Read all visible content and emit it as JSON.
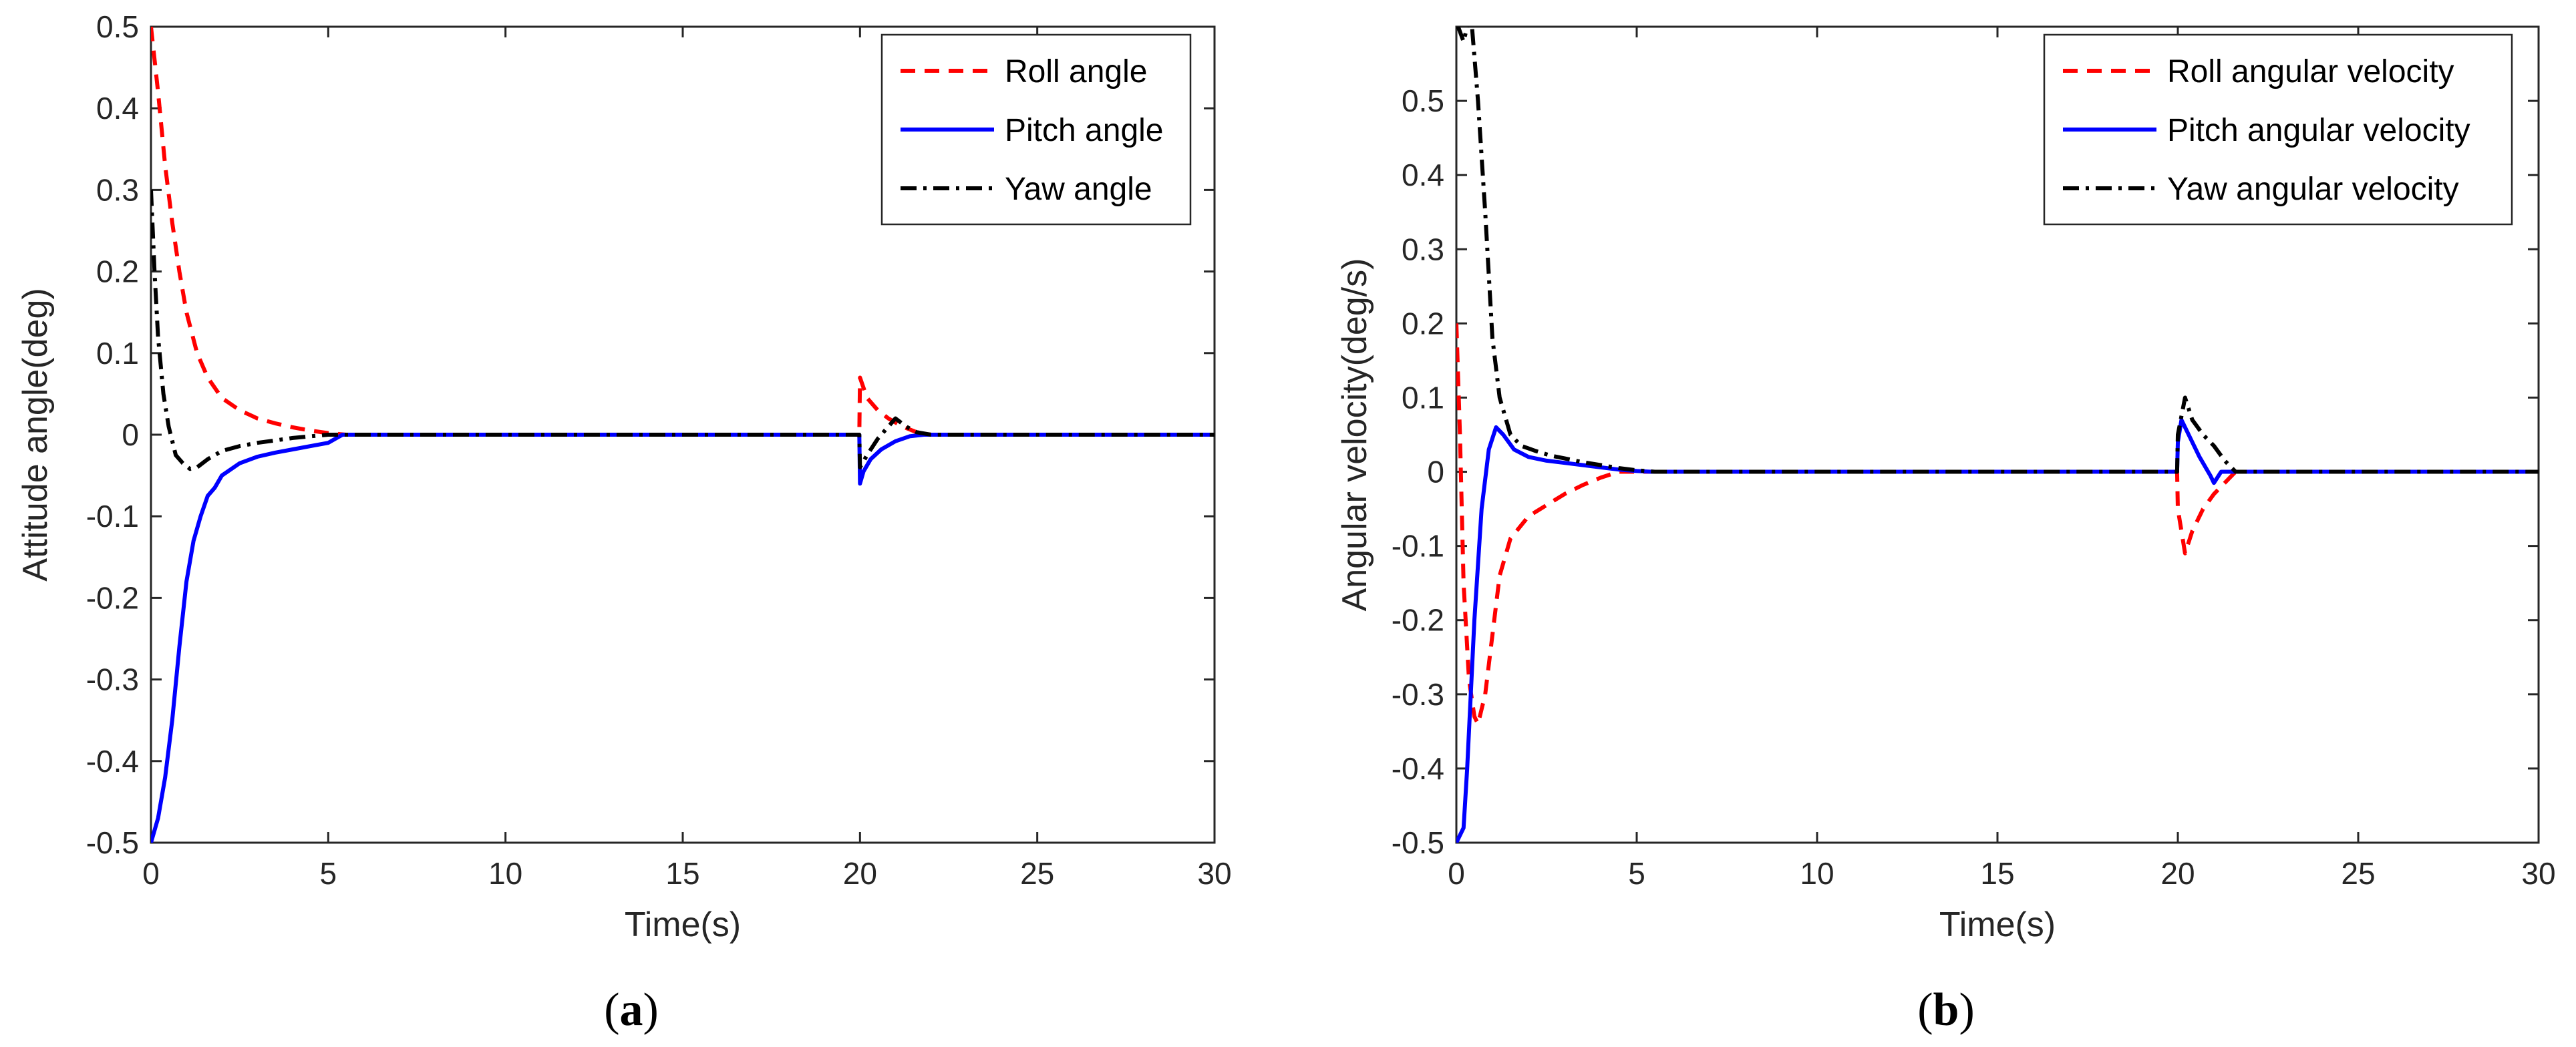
{
  "chart_data": [
    {
      "type": "line",
      "caption": "a",
      "xlabel": "Time(s)",
      "ylabel": "Attitude angle(deg)",
      "xlim": [
        0,
        30
      ],
      "ylim": [
        -0.5,
        0.5
      ],
      "xticks": [
        0,
        5,
        10,
        15,
        20,
        25,
        30
      ],
      "yticks": [
        -0.5,
        -0.4,
        -0.3,
        -0.2,
        -0.1,
        0,
        0.1,
        0.2,
        0.3,
        0.4,
        0.5
      ],
      "ytick_labels": [
        "-0.5",
        "-0.4",
        "-0.3",
        "-0.2",
        "-0.1",
        "0",
        "0.1",
        "0.2",
        "0.3",
        "0.4",
        "0.5"
      ],
      "legend_position": "top-right",
      "series": [
        {
          "name": "Roll angle",
          "color": "#ff0000",
          "style": "dashed",
          "points": [
            [
              0,
              0.5
            ],
            [
              0.2,
              0.42
            ],
            [
              0.4,
              0.33
            ],
            [
              0.6,
              0.26
            ],
            [
              0.8,
              0.2
            ],
            [
              1.0,
              0.15
            ],
            [
              1.3,
              0.1
            ],
            [
              1.6,
              0.07
            ],
            [
              2.0,
              0.045
            ],
            [
              2.5,
              0.03
            ],
            [
              3.0,
              0.02
            ],
            [
              3.5,
              0.014
            ],
            [
              4.0,
              0.009
            ],
            [
              4.5,
              0.005
            ],
            [
              5.0,
              0.002
            ],
            [
              5.5,
              0
            ],
            [
              19.98,
              0
            ],
            [
              20.0,
              0.07
            ],
            [
              20.2,
              0.045
            ],
            [
              20.5,
              0.03
            ],
            [
              20.8,
              0.02
            ],
            [
              21.2,
              0.01
            ],
            [
              21.6,
              0.003
            ],
            [
              22.0,
              0
            ],
            [
              30,
              0
            ]
          ]
        },
        {
          "name": "Pitch angle",
          "color": "#0000ff",
          "style": "solid",
          "points": [
            [
              0,
              -0.5
            ],
            [
              0.2,
              -0.47
            ],
            [
              0.4,
              -0.42
            ],
            [
              0.6,
              -0.35
            ],
            [
              0.8,
              -0.26
            ],
            [
              1.0,
              -0.18
            ],
            [
              1.2,
              -0.13
            ],
            [
              1.4,
              -0.1
            ],
            [
              1.6,
              -0.075
            ],
            [
              1.8,
              -0.065
            ],
            [
              2.0,
              -0.05
            ],
            [
              2.5,
              -0.035
            ],
            [
              3.0,
              -0.027
            ],
            [
              3.5,
              -0.022
            ],
            [
              4.0,
              -0.018
            ],
            [
              4.5,
              -0.014
            ],
            [
              5.0,
              -0.01
            ],
            [
              5.4,
              0
            ],
            [
              19.98,
              0
            ],
            [
              20.0,
              -0.06
            ],
            [
              20.1,
              -0.045
            ],
            [
              20.3,
              -0.03
            ],
            [
              20.6,
              -0.018
            ],
            [
              21.0,
              -0.008
            ],
            [
              21.4,
              -0.002
            ],
            [
              21.8,
              0
            ],
            [
              30,
              0
            ]
          ]
        },
        {
          "name": "Yaw angle",
          "color": "#000000",
          "style": "dashdot",
          "points": [
            [
              0,
              0.3
            ],
            [
              0.1,
              0.2
            ],
            [
              0.2,
              0.12
            ],
            [
              0.35,
              0.05
            ],
            [
              0.5,
              0.01
            ],
            [
              0.7,
              -0.025
            ],
            [
              0.9,
              -0.035
            ],
            [
              1.1,
              -0.042
            ],
            [
              1.3,
              -0.04
            ],
            [
              1.6,
              -0.03
            ],
            [
              2.0,
              -0.02
            ],
            [
              2.5,
              -0.014
            ],
            [
              3.0,
              -0.01
            ],
            [
              3.5,
              -0.007
            ],
            [
              4.0,
              -0.004
            ],
            [
              4.5,
              -0.002
            ],
            [
              5.0,
              0
            ],
            [
              19.98,
              0
            ],
            [
              20.0,
              -0.04
            ],
            [
              20.2,
              -0.025
            ],
            [
              20.5,
              -0.005
            ],
            [
              20.8,
              0.01
            ],
            [
              21.0,
              0.02
            ],
            [
              21.3,
              0.01
            ],
            [
              21.6,
              0.003
            ],
            [
              22.0,
              0
            ],
            [
              30,
              0
            ]
          ]
        }
      ]
    },
    {
      "type": "line",
      "caption": "b",
      "xlabel": "Time(s)",
      "ylabel": "Angular velocity(deg/s)",
      "xlim": [
        0,
        30
      ],
      "ylim": [
        -0.5,
        0.6
      ],
      "xticks": [
        0,
        5,
        10,
        15,
        20,
        25,
        30
      ],
      "yticks": [
        -0.5,
        -0.4,
        -0.3,
        -0.2,
        -0.1,
        0,
        0.1,
        0.2,
        0.3,
        0.4,
        0.5
      ],
      "ytick_labels": [
        "-0.5",
        "-0.4",
        "-0.3",
        "-0.2",
        "-0.1",
        "0",
        "0.1",
        "0.2",
        "0.3",
        "0.4",
        "0.5"
      ],
      "legend_position": "top-right",
      "series": [
        {
          "name": "Roll angular velocity",
          "color": "#ff0000",
          "style": "dashed",
          "points": [
            [
              0,
              0.2
            ],
            [
              0.1,
              0.05
            ],
            [
              0.2,
              -0.15
            ],
            [
              0.35,
              -0.28
            ],
            [
              0.5,
              -0.33
            ],
            [
              0.6,
              -0.34
            ],
            [
              0.8,
              -0.3
            ],
            [
              1.0,
              -0.22
            ],
            [
              1.2,
              -0.14
            ],
            [
              1.5,
              -0.09
            ],
            [
              2.0,
              -0.06
            ],
            [
              2.5,
              -0.045
            ],
            [
              3.0,
              -0.03
            ],
            [
              3.5,
              -0.018
            ],
            [
              4.0,
              -0.008
            ],
            [
              4.5,
              0
            ],
            [
              19.98,
              0
            ],
            [
              20.0,
              -0.05
            ],
            [
              20.2,
              -0.11
            ],
            [
              20.4,
              -0.08
            ],
            [
              20.7,
              -0.05
            ],
            [
              21.0,
              -0.03
            ],
            [
              21.3,
              -0.015
            ],
            [
              21.6,
              0
            ],
            [
              30,
              0
            ]
          ]
        },
        {
          "name": "Pitch angular velocity",
          "color": "#0000ff",
          "style": "solid",
          "points": [
            [
              0,
              -0.5
            ],
            [
              0.2,
              -0.48
            ],
            [
              0.3,
              -0.4
            ],
            [
              0.5,
              -0.2
            ],
            [
              0.7,
              -0.05
            ],
            [
              0.9,
              0.03
            ],
            [
              1.1,
              0.06
            ],
            [
              1.3,
              0.05
            ],
            [
              1.6,
              0.03
            ],
            [
              2.0,
              0.02
            ],
            [
              2.5,
              0.015
            ],
            [
              3.0,
              0.012
            ],
            [
              3.5,
              0.009
            ],
            [
              4.0,
              0.006
            ],
            [
              4.5,
              0.003
            ],
            [
              5.0,
              0.001
            ],
            [
              5.4,
              0
            ],
            [
              19.98,
              0
            ],
            [
              20.0,
              0.04
            ],
            [
              20.1,
              0.07
            ],
            [
              20.3,
              0.05
            ],
            [
              20.6,
              0.02
            ],
            [
              20.9,
              -0.005
            ],
            [
              21.0,
              -0.015
            ],
            [
              21.2,
              0
            ],
            [
              30,
              0
            ]
          ]
        },
        {
          "name": "Yaw angular velocity",
          "color": "#000000",
          "style": "dashdot",
          "points": [
            [
              0,
              0.6
            ],
            [
              0.05,
              0.6
            ],
            [
              0.2,
              0.58
            ],
            [
              0.4,
              0.62
            ],
            [
              0.6,
              0.5
            ],
            [
              0.8,
              0.35
            ],
            [
              1.0,
              0.18
            ],
            [
              1.2,
              0.1
            ],
            [
              1.5,
              0.05
            ],
            [
              1.8,
              0.035
            ],
            [
              2.2,
              0.028
            ],
            [
              2.6,
              0.022
            ],
            [
              3.0,
              0.018
            ],
            [
              3.5,
              0.013
            ],
            [
              4.0,
              0.009
            ],
            [
              4.5,
              0.005
            ],
            [
              5.0,
              0.002
            ],
            [
              5.5,
              0
            ],
            [
              19.98,
              0
            ],
            [
              20.0,
              0.05
            ],
            [
              20.2,
              0.1
            ],
            [
              20.4,
              0.07
            ],
            [
              20.7,
              0.05
            ],
            [
              21.0,
              0.035
            ],
            [
              21.3,
              0.015
            ],
            [
              21.6,
              0
            ],
            [
              30,
              0
            ]
          ]
        }
      ]
    }
  ]
}
